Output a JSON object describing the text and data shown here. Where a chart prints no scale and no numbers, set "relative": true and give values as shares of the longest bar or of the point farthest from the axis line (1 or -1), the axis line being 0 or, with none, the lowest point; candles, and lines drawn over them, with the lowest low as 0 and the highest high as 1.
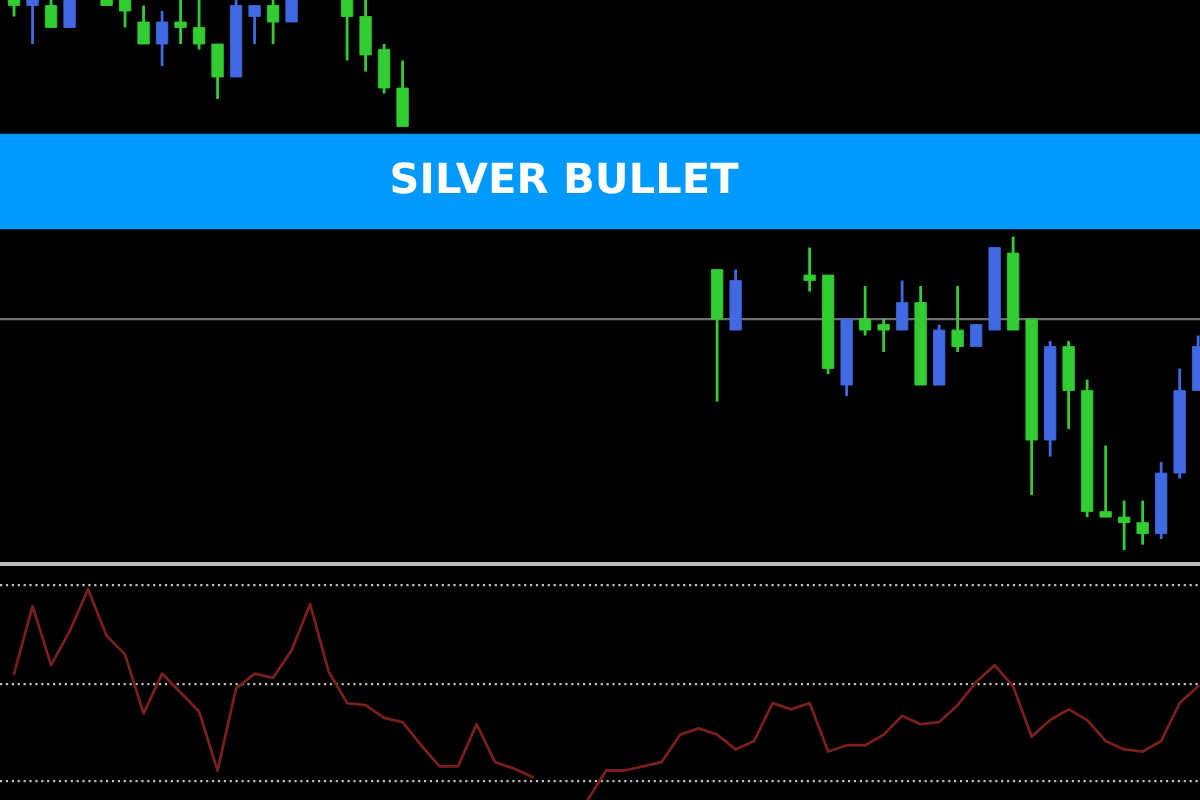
{
  "chart_data": [
    {
      "type": "candlestick",
      "title": "SILVER BULLET",
      "relative": true,
      "tick_labels": false,
      "grid": false,
      "categories": [
        null,
        null,
        null,
        null,
        null,
        null,
        null,
        null,
        null,
        null,
        null,
        null,
        null,
        null,
        null,
        null,
        null,
        null,
        null,
        null,
        null,
        null,
        null,
        null,
        null,
        null,
        null,
        null,
        null,
        null,
        null,
        null,
        null,
        null,
        null,
        null,
        null,
        null,
        null,
        null,
        null,
        null,
        null,
        null,
        null,
        null,
        null,
        null,
        null,
        null,
        null,
        null,
        null,
        null,
        null,
        null,
        null,
        null,
        null,
        null,
        null,
        null,
        null,
        null,
        null
      ],
      "ohlc": [
        [
          0.99,
          1.0,
          0.97,
          1.0
        ],
        [
          1.0,
          1.0,
          0.92,
          0.99
        ],
        [
          0.95,
          1.0,
          0.95,
          0.99
        ],
        [
          1.0,
          1.0,
          0.95,
          0.95
        ],
        null,
        [
          0.99,
          1.0,
          0.99,
          1.0
        ],
        [
          0.98,
          1.0,
          0.95,
          1.0
        ],
        [
          0.92,
          0.99,
          0.92,
          0.96
        ],
        [
          0.96,
          0.98,
          0.88,
          0.92
        ],
        [
          0.95,
          1.0,
          0.92,
          0.96
        ],
        [
          0.92,
          1.0,
          0.91,
          0.95
        ],
        [
          0.86,
          0.92,
          0.82,
          0.92
        ],
        [
          0.99,
          1.0,
          0.86,
          0.86
        ],
        [
          0.99,
          0.99,
          0.92,
          0.97
        ],
        [
          0.96,
          1.0,
          0.92,
          0.99
        ],
        [
          1.0,
          1.0,
          0.96,
          0.96
        ],
        null,
        null,
        [
          0.97,
          1.0,
          0.89,
          1.0
        ],
        [
          0.9,
          1.0,
          0.87,
          0.97
        ],
        [
          0.84,
          0.92,
          0.83,
          0.91
        ],
        [
          0.77,
          0.89,
          0.77,
          0.84
        ],
        null,
        null,
        null,
        null,
        null,
        null,
        null,
        null,
        null,
        null,
        null,
        null,
        null,
        null,
        null,
        null,
        [
          0.42,
          0.51,
          0.27,
          0.51
        ],
        [
          0.49,
          0.51,
          0.4,
          0.4
        ],
        null,
        null,
        null,
        [
          0.49,
          0.55,
          0.47,
          0.5
        ],
        [
          0.33,
          0.5,
          0.32,
          0.5
        ],
        [
          0.42,
          0.42,
          0.28,
          0.3
        ],
        [
          0.4,
          0.48,
          0.39,
          0.42
        ],
        [
          0.4,
          0.42,
          0.36,
          0.41
        ],
        [
          0.45,
          0.49,
          0.4,
          0.4
        ],
        [
          0.3,
          0.48,
          0.3,
          0.45
        ],
        [
          0.4,
          0.41,
          0.3,
          0.3
        ],
        [
          0.37,
          0.48,
          0.36,
          0.4
        ],
        [
          0.41,
          0.41,
          0.37,
          0.37
        ],
        [
          0.55,
          0.55,
          0.4,
          0.4
        ],
        [
          0.4,
          0.57,
          0.4,
          0.54
        ],
        [
          0.2,
          0.42,
          0.1,
          0.42
        ],
        [
          0.37,
          0.38,
          0.17,
          0.2
        ],
        [
          0.29,
          0.38,
          0.22,
          0.37
        ],
        [
          0.07,
          0.31,
          0.06,
          0.29
        ],
        [
          0.06,
          0.19,
          0.06,
          0.07
        ],
        [
          0.05,
          0.09,
          0.0,
          0.06
        ],
        [
          0.03,
          0.09,
          0.01,
          0.05
        ],
        [
          0.14,
          0.16,
          0.02,
          0.03
        ],
        [
          0.29,
          0.33,
          0.13,
          0.14
        ],
        [
          0.37,
          0.39,
          0.29,
          0.29
        ]
      ],
      "colors": [
        "#32cd32",
        "#4169e1",
        "#32cd32",
        "#4169e1",
        null,
        "#32cd32",
        "#32cd32",
        "#32cd32",
        "#4169e1",
        "#32cd32",
        "#32cd32",
        "#32cd32",
        "#4169e1",
        "#4169e1",
        "#32cd32",
        "#4169e1",
        null,
        null,
        "#32cd32",
        "#32cd32",
        "#32cd32",
        "#32cd32",
        null,
        null,
        null,
        null,
        null,
        null,
        null,
        null,
        null,
        null,
        null,
        null,
        null,
        null,
        null,
        null,
        "#32cd32",
        "#4169e1",
        null,
        null,
        null,
        "#32cd32",
        "#32cd32",
        "#4169e1",
        "#32cd32",
        "#32cd32",
        "#4169e1",
        "#32cd32",
        "#4169e1",
        "#32cd32",
        "#4169e1",
        "#4169e1",
        "#32cd32",
        "#32cd32",
        "#4169e1",
        "#32cd32",
        "#32cd32",
        "#32cd32",
        "#32cd32",
        "#32cd32",
        "#4169e1",
        "#4169e1",
        "#4169e1"
      ],
      "ref_lines": [
        {
          "axis": "y",
          "value": 0.42,
          "color": "#6e6e6e",
          "line_style": "solid"
        }
      ]
    },
    {
      "type": "line",
      "relative": true,
      "tick_labels": false,
      "grid": false,
      "marker": "none",
      "line_style": "solid",
      "categories": [
        null,
        null,
        null,
        null,
        null,
        null,
        null,
        null,
        null,
        null,
        null,
        null,
        null,
        null,
        null,
        null,
        null,
        null,
        null,
        null,
        null,
        null,
        null,
        null,
        null,
        null,
        null,
        null,
        null,
        null,
        null,
        null,
        null,
        null,
        null,
        null,
        null,
        null,
        null,
        null,
        null,
        null,
        null,
        null,
        null,
        null,
        null,
        null,
        null,
        null,
        null,
        null,
        null,
        null,
        null,
        null,
        null,
        null,
        null,
        null,
        null,
        null,
        null,
        null,
        null
      ],
      "series": [
        {
          "color": "#7a1e1e",
          "values": [
            0.6,
            0.92,
            0.64,
            0.8,
            1.0,
            0.78,
            0.69,
            0.41,
            0.6,
            0.51,
            0.42,
            0.14,
            0.53,
            0.6,
            0.58,
            0.71,
            0.93,
            0.61,
            0.46,
            0.45,
            0.39,
            0.37,
            0.26,
            0.16,
            0.16,
            0.36,
            0.18,
            0.15,
            0.11,
            null,
            null,
            0.0,
            0.14,
            0.14,
            0.16,
            0.18,
            0.31,
            0.34,
            0.31,
            0.24,
            0.28,
            0.46,
            0.43,
            0.46,
            0.23,
            0.26,
            0.26,
            0.31,
            0.4,
            0.36,
            0.37,
            0.45,
            0.56,
            0.64,
            0.54,
            0.3,
            0.38,
            0.43,
            0.38,
            0.28,
            0.24,
            0.23,
            0.28,
            0.46,
            0.54
          ]
        }
      ],
      "ref_lines": [
        {
          "axis": "y",
          "value": 1.02,
          "color": "#bfbfbf",
          "line_style": "dotted"
        },
        {
          "axis": "y",
          "value": 0.55,
          "color": "#bfbfbf",
          "line_style": "dotted"
        },
        {
          "axis": "y",
          "value": 0.09,
          "color": "#bfbfbf",
          "line_style": "dotted"
        }
      ]
    }
  ]
}
